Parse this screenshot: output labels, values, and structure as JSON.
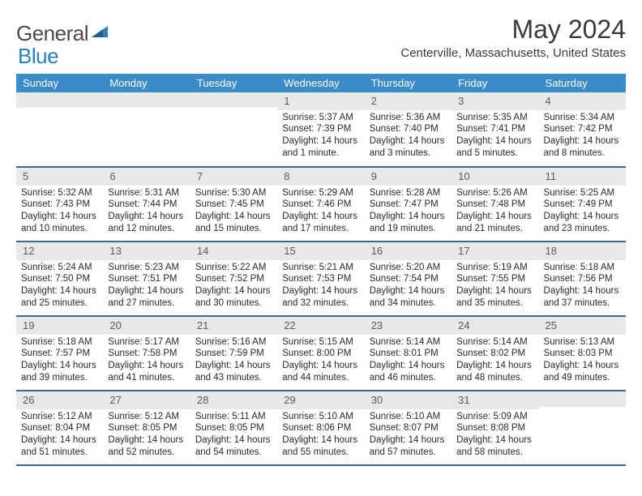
{
  "logo": {
    "part1": "General",
    "part2": "Blue"
  },
  "title": "May 2024",
  "location": "Centerville, Massachusetts, United States",
  "colors": {
    "header_bg": "#3b8bc9",
    "header_text": "#ffffff",
    "daynum_bg": "#e8e8e8",
    "daynum_text": "#5a5a5a",
    "row_border": "#3b6a95",
    "body_text": "#2a2a2a",
    "logo_gray": "#4a4a4a",
    "logo_blue": "#2a7fbf"
  },
  "dayNames": [
    "Sunday",
    "Monday",
    "Tuesday",
    "Wednesday",
    "Thursday",
    "Friday",
    "Saturday"
  ],
  "weeks": [
    [
      {
        "n": "",
        "sr": "",
        "ss": "",
        "dl": ""
      },
      {
        "n": "",
        "sr": "",
        "ss": "",
        "dl": ""
      },
      {
        "n": "",
        "sr": "",
        "ss": "",
        "dl": ""
      },
      {
        "n": "1",
        "sr": "5:37 AM",
        "ss": "7:39 PM",
        "dl": "14 hours and 1 minute."
      },
      {
        "n": "2",
        "sr": "5:36 AM",
        "ss": "7:40 PM",
        "dl": "14 hours and 3 minutes."
      },
      {
        "n": "3",
        "sr": "5:35 AM",
        "ss": "7:41 PM",
        "dl": "14 hours and 5 minutes."
      },
      {
        "n": "4",
        "sr": "5:34 AM",
        "ss": "7:42 PM",
        "dl": "14 hours and 8 minutes."
      }
    ],
    [
      {
        "n": "5",
        "sr": "5:32 AM",
        "ss": "7:43 PM",
        "dl": "14 hours and 10 minutes."
      },
      {
        "n": "6",
        "sr": "5:31 AM",
        "ss": "7:44 PM",
        "dl": "14 hours and 12 minutes."
      },
      {
        "n": "7",
        "sr": "5:30 AM",
        "ss": "7:45 PM",
        "dl": "14 hours and 15 minutes."
      },
      {
        "n": "8",
        "sr": "5:29 AM",
        "ss": "7:46 PM",
        "dl": "14 hours and 17 minutes."
      },
      {
        "n": "9",
        "sr": "5:28 AM",
        "ss": "7:47 PM",
        "dl": "14 hours and 19 minutes."
      },
      {
        "n": "10",
        "sr": "5:26 AM",
        "ss": "7:48 PM",
        "dl": "14 hours and 21 minutes."
      },
      {
        "n": "11",
        "sr": "5:25 AM",
        "ss": "7:49 PM",
        "dl": "14 hours and 23 minutes."
      }
    ],
    [
      {
        "n": "12",
        "sr": "5:24 AM",
        "ss": "7:50 PM",
        "dl": "14 hours and 25 minutes."
      },
      {
        "n": "13",
        "sr": "5:23 AM",
        "ss": "7:51 PM",
        "dl": "14 hours and 27 minutes."
      },
      {
        "n": "14",
        "sr": "5:22 AM",
        "ss": "7:52 PM",
        "dl": "14 hours and 30 minutes."
      },
      {
        "n": "15",
        "sr": "5:21 AM",
        "ss": "7:53 PM",
        "dl": "14 hours and 32 minutes."
      },
      {
        "n": "16",
        "sr": "5:20 AM",
        "ss": "7:54 PM",
        "dl": "14 hours and 34 minutes."
      },
      {
        "n": "17",
        "sr": "5:19 AM",
        "ss": "7:55 PM",
        "dl": "14 hours and 35 minutes."
      },
      {
        "n": "18",
        "sr": "5:18 AM",
        "ss": "7:56 PM",
        "dl": "14 hours and 37 minutes."
      }
    ],
    [
      {
        "n": "19",
        "sr": "5:18 AM",
        "ss": "7:57 PM",
        "dl": "14 hours and 39 minutes."
      },
      {
        "n": "20",
        "sr": "5:17 AM",
        "ss": "7:58 PM",
        "dl": "14 hours and 41 minutes."
      },
      {
        "n": "21",
        "sr": "5:16 AM",
        "ss": "7:59 PM",
        "dl": "14 hours and 43 minutes."
      },
      {
        "n": "22",
        "sr": "5:15 AM",
        "ss": "8:00 PM",
        "dl": "14 hours and 44 minutes."
      },
      {
        "n": "23",
        "sr": "5:14 AM",
        "ss": "8:01 PM",
        "dl": "14 hours and 46 minutes."
      },
      {
        "n": "24",
        "sr": "5:14 AM",
        "ss": "8:02 PM",
        "dl": "14 hours and 48 minutes."
      },
      {
        "n": "25",
        "sr": "5:13 AM",
        "ss": "8:03 PM",
        "dl": "14 hours and 49 minutes."
      }
    ],
    [
      {
        "n": "26",
        "sr": "5:12 AM",
        "ss": "8:04 PM",
        "dl": "14 hours and 51 minutes."
      },
      {
        "n": "27",
        "sr": "5:12 AM",
        "ss": "8:05 PM",
        "dl": "14 hours and 52 minutes."
      },
      {
        "n": "28",
        "sr": "5:11 AM",
        "ss": "8:05 PM",
        "dl": "14 hours and 54 minutes."
      },
      {
        "n": "29",
        "sr": "5:10 AM",
        "ss": "8:06 PM",
        "dl": "14 hours and 55 minutes."
      },
      {
        "n": "30",
        "sr": "5:10 AM",
        "ss": "8:07 PM",
        "dl": "14 hours and 57 minutes."
      },
      {
        "n": "31",
        "sr": "5:09 AM",
        "ss": "8:08 PM",
        "dl": "14 hours and 58 minutes."
      },
      {
        "n": "",
        "sr": "",
        "ss": "",
        "dl": ""
      }
    ]
  ],
  "labels": {
    "sunrise": "Sunrise:",
    "sunset": "Sunset:",
    "daylight": "Daylight:"
  }
}
